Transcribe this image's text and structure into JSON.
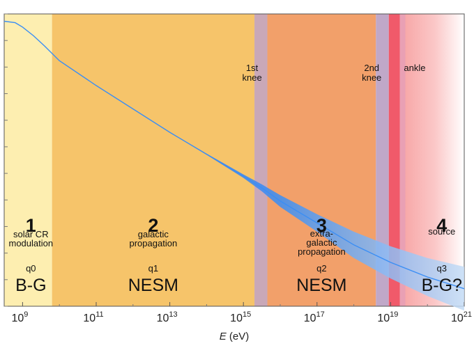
{
  "chart_data": {
    "type": "line",
    "title": "",
    "xscale": "log",
    "xlim_log10": [
      8.5,
      21
    ],
    "xlabel": {
      "var": "E",
      "unit": " (eV)"
    },
    "x_ticks": [
      {
        "log10": 9,
        "base": "10",
        "exp": "9"
      },
      {
        "log10": 11,
        "base": "10",
        "exp": "11"
      },
      {
        "log10": 13,
        "base": "10",
        "exp": "13"
      },
      {
        "log10": 15,
        "base": "10",
        "exp": "15"
      },
      {
        "log10": 17,
        "base": "10",
        "exp": "17"
      },
      {
        "log10": 19,
        "base": "10",
        "exp": "19"
      },
      {
        "log10": 21,
        "base": "10",
        "exp": "21"
      }
    ],
    "y_tick_count": 11,
    "regions": [
      {
        "id": "1",
        "from_log10": 8.5,
        "to_log10": 9.8,
        "color": "#fdeeb0",
        "label_lines": [
          "solar CR",
          "modulation"
        ],
        "q": "q0",
        "model": "B-G"
      },
      {
        "id": "2",
        "from_log10": 9.8,
        "to_log10": 15.3,
        "color": "#f6c46a",
        "label_lines": [
          "galactic",
          "propagation"
        ],
        "q": "q1",
        "model": "NESM"
      },
      {
        "id": "3",
        "from_log10": 15.65,
        "to_log10": 18.6,
        "color": "#f2a06a",
        "label_lines": [
          "extra-",
          "galactic",
          "propagation"
        ],
        "q": "q2",
        "model": "NESM"
      },
      {
        "id": "4",
        "from_log10": 19.25,
        "to_log10": 21,
        "color": "#fbc8c8",
        "label_lines": [
          "source"
        ],
        "q": "q3",
        "model": "B-G?"
      }
    ],
    "markers": [
      {
        "id": "knee-1",
        "at_log10": 15.5,
        "label_lines": [
          "1st",
          "knee"
        ]
      },
      {
        "id": "knee-2",
        "at_log10": 18.75,
        "label_lines": [
          "2nd",
          "knee"
        ]
      },
      {
        "id": "ankle",
        "at_log10": 19.2,
        "label_lines": [
          "ankle"
        ]
      }
    ],
    "spectrum_trend": {
      "x_log10": [
        8.5,
        8.8,
        9.0,
        9.3,
        9.6,
        10,
        11,
        12,
        13,
        14,
        15,
        15.5,
        16,
        17,
        18,
        19,
        20,
        21
      ],
      "y_rel": [
        0.975,
        0.97,
        0.955,
        0.925,
        0.89,
        0.84,
        0.755,
        0.675,
        0.595,
        0.52,
        0.445,
        0.405,
        0.36,
        0.285,
        0.21,
        0.15,
        0.1,
        0.06
      ],
      "band_halfwidth_rel": [
        0,
        0,
        0,
        0,
        0,
        0,
        0,
        0,
        0,
        0.002,
        0.006,
        0.012,
        0.02,
        0.03,
        0.045,
        0.055,
        0.065,
        0.075
      ],
      "colors": [
        "#1f4fe0",
        "#3a8ef5",
        "#7fb8f5"
      ]
    }
  }
}
